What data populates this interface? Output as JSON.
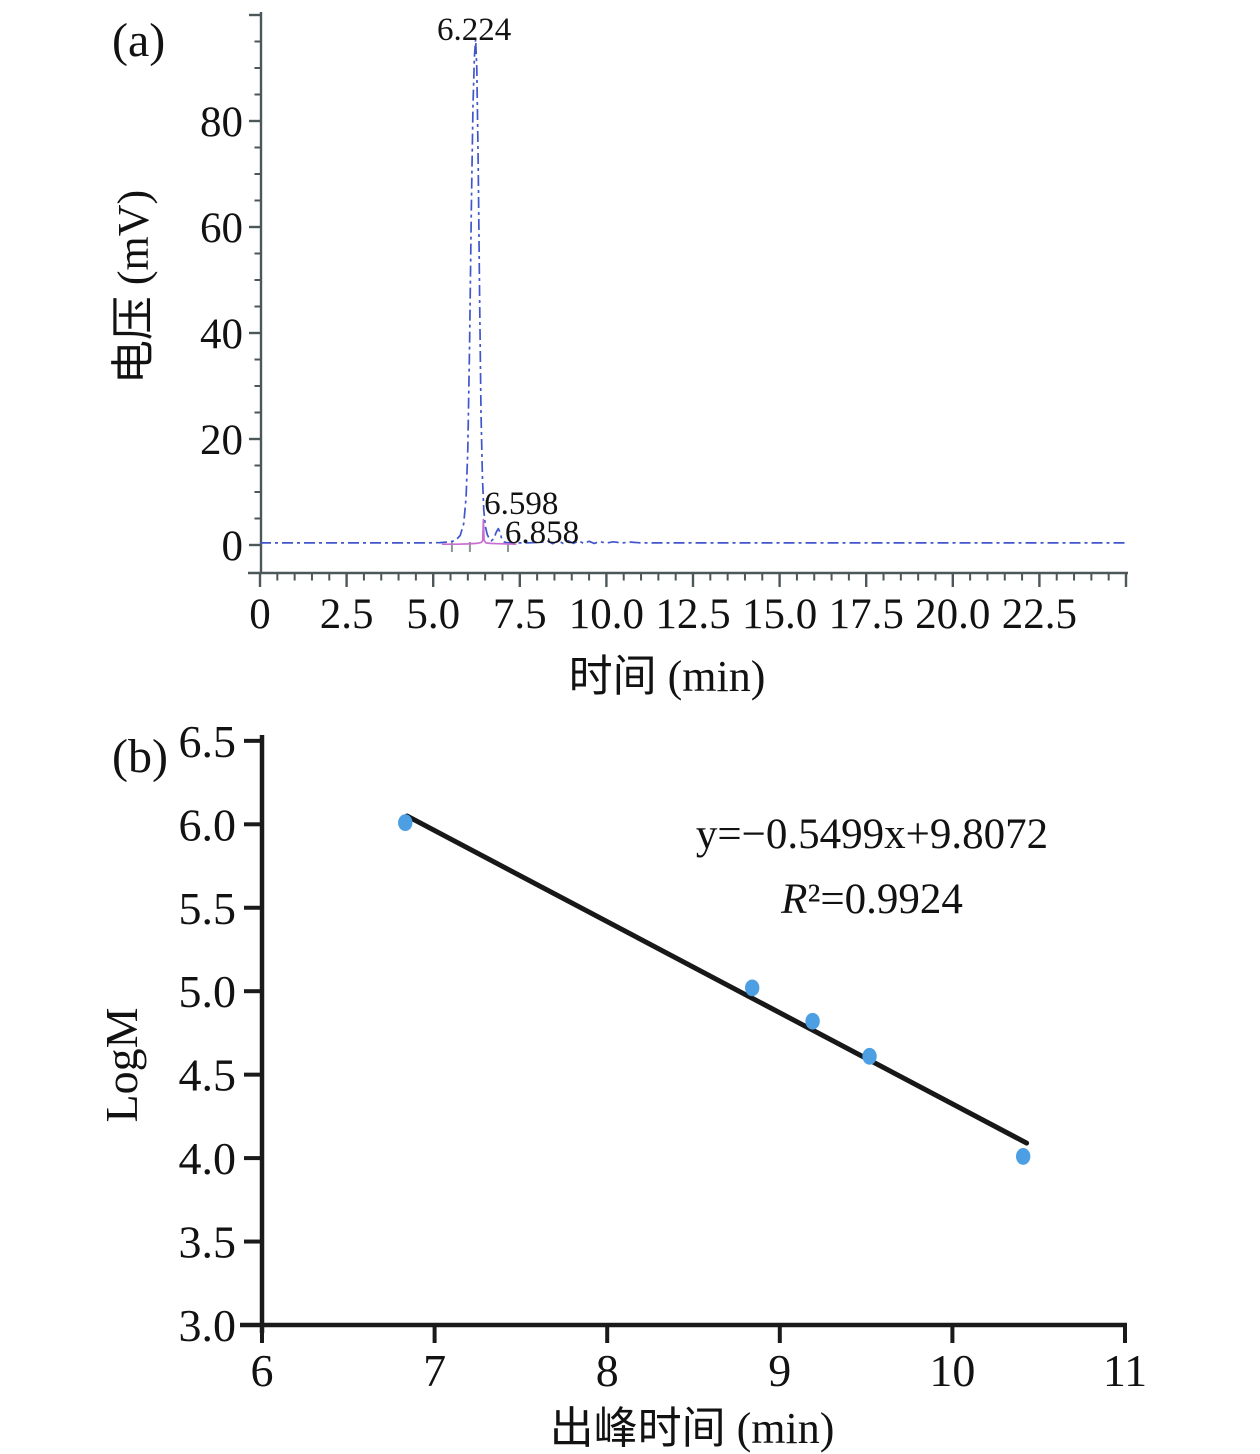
{
  "page": {
    "background": "#ffffff",
    "text_color": "#121212"
  },
  "chart_data": [
    {
      "id": "a",
      "type": "line",
      "panel_label": "(a)",
      "title": "",
      "xlabel": "时间 (min)",
      "ylabel": "电压 (mV)",
      "xlim": [
        0,
        25.1
      ],
      "ylim": [
        -5.3,
        100.6
      ],
      "grid": false,
      "legend": null,
      "axis_color": "#4b5759",
      "x_ticks": {
        "values": [
          0,
          2.5,
          5,
          7.5,
          10,
          12.5,
          15,
          17.5,
          20,
          22.5
        ],
        "labels": [
          "0",
          "2.5",
          "5.0",
          "7.5",
          "10.0",
          "12.5",
          "15.0",
          "17.5",
          "20.0",
          "22.5"
        ]
      },
      "x_minor_step": 0.5,
      "y_ticks": {
        "values": [
          0,
          20,
          40,
          60,
          80
        ],
        "labels": [
          "0",
          "20",
          "40",
          "60",
          "80"
        ]
      },
      "y_minor_step": 5,
      "series": [
        {
          "name": "detector-trace-main",
          "color": "#4156cd",
          "dash": "11 4 3 4",
          "width": 1.7,
          "points": [
            [
              0,
              0.4
            ],
            [
              0.6,
              0.4
            ],
            [
              1.2,
              0.4
            ],
            [
              1.8,
              0.4
            ],
            [
              2.4,
              0.4
            ],
            [
              3.0,
              0.4
            ],
            [
              3.6,
              0.4
            ],
            [
              4.2,
              0.4
            ],
            [
              4.8,
              0.4
            ],
            [
              5.2,
              0.45
            ],
            [
              5.5,
              0.6
            ],
            [
              5.65,
              0.9
            ],
            [
              5.78,
              1.8
            ],
            [
              5.88,
              4
            ],
            [
              5.95,
              9
            ],
            [
              6.0,
              18
            ],
            [
              6.05,
              38
            ],
            [
              6.1,
              63
            ],
            [
              6.15,
              83
            ],
            [
              6.19,
              92
            ],
            [
              6.224,
              95.5
            ],
            [
              6.26,
              90
            ],
            [
              6.3,
              72
            ],
            [
              6.34,
              47
            ],
            [
              6.38,
              25
            ],
            [
              6.42,
              13
            ],
            [
              6.46,
              6.5
            ],
            [
              6.51,
              3.4
            ],
            [
              6.56,
              2
            ],
            [
              6.62,
              1.2
            ],
            [
              6.68,
              0.8
            ],
            [
              6.75,
              1.2
            ],
            [
              6.82,
              2.4
            ],
            [
              6.88,
              3.1
            ],
            [
              6.93,
              2.4
            ],
            [
              6.98,
              1.1
            ],
            [
              7.04,
              0.6
            ],
            [
              7.12,
              0.45
            ],
            [
              7.3,
              0.4
            ],
            [
              7.7,
              0.4
            ],
            [
              8.1,
              0.5
            ],
            [
              8.3,
              0.75
            ],
            [
              8.45,
              0.25
            ],
            [
              8.6,
              0.8
            ],
            [
              8.75,
              0.3
            ],
            [
              8.9,
              0.8
            ],
            [
              9.05,
              0.3
            ],
            [
              9.2,
              0.75
            ],
            [
              9.35,
              0.3
            ],
            [
              9.5,
              0.7
            ],
            [
              9.65,
              0.3
            ],
            [
              9.8,
              0.65
            ],
            [
              10.0,
              0.35
            ],
            [
              10.2,
              0.6
            ],
            [
              10.45,
              0.4
            ],
            [
              10.7,
              0.55
            ],
            [
              11.0,
              0.4
            ],
            [
              11.6,
              0.4
            ],
            [
              12.4,
              0.4
            ],
            [
              13.2,
              0.4
            ],
            [
              14.0,
              0.4
            ],
            [
              15.0,
              0.4
            ],
            [
              16.0,
              0.4
            ],
            [
              17.0,
              0.4
            ],
            [
              18.0,
              0.4
            ],
            [
              19.0,
              0.4
            ],
            [
              20.0,
              0.4
            ],
            [
              21.0,
              0.4
            ],
            [
              22.0,
              0.4
            ],
            [
              23.0,
              0.4
            ],
            [
              24.0,
              0.4
            ],
            [
              25.0,
              0.4
            ]
          ]
        },
        {
          "name": "detector-trace-secondary",
          "color": "#c76fd0",
          "dash": null,
          "width": 1.7,
          "points": [
            [
              5.25,
              0.15
            ],
            [
              5.7,
              0.15
            ],
            [
              6.0,
              0.2
            ],
            [
              6.25,
              0.3
            ],
            [
              6.38,
              0.45
            ],
            [
              6.43,
              0.8
            ],
            [
              6.45,
              4.8
            ],
            [
              6.47,
              0.9
            ],
            [
              6.52,
              0.4
            ],
            [
              6.65,
              0.3
            ],
            [
              6.85,
              0.25
            ],
            [
              7.1,
              0.2
            ],
            [
              7.4,
              0.15
            ]
          ]
        }
      ],
      "integration_markers": {
        "color": "#8a9693",
        "x_values": [
          5.54,
          6.06,
          7.16
        ]
      },
      "peak_labels": [
        {
          "text": "6.224",
          "x": 6.18,
          "y_mv": 95.3,
          "anchor": "middle"
        },
        {
          "text": "6.598",
          "x": 6.47,
          "y_mv": 5.85,
          "anchor": "start"
        },
        {
          "text": "6.858",
          "x": 7.07,
          "y_mv": 0.38,
          "anchor": "start"
        }
      ]
    },
    {
      "id": "b",
      "type": "scatter",
      "panel_label": "(b)",
      "title": "",
      "xlabel": "出峰时间 (min)",
      "ylabel": "LogM",
      "xlim": [
        6,
        11
      ],
      "ylim": [
        3.0,
        6.5
      ],
      "grid": false,
      "legend": null,
      "axis_color": "#1a1a1a",
      "x_ticks": {
        "values": [
          6,
          7,
          8,
          9,
          10,
          11
        ],
        "labels": [
          "6",
          "7",
          "8",
          "9",
          "10",
          "11"
        ]
      },
      "y_ticks": {
        "values": [
          3.0,
          3.5,
          4.0,
          4.5,
          5.0,
          5.5,
          6.0,
          6.5
        ],
        "labels": [
          "3.0",
          "3.5",
          "4.0",
          "4.5",
          "5.0",
          "5.5",
          "6.0",
          "6.5"
        ]
      },
      "points": {
        "name": "calibration-standards",
        "color": "#4d9fe3",
        "xy": [
          [
            6.83,
            6.01
          ],
          [
            8.84,
            5.02
          ],
          [
            9.19,
            4.82
          ],
          [
            9.52,
            4.61
          ],
          [
            10.41,
            4.01
          ]
        ]
      },
      "fit_line": {
        "color": "#181818",
        "width": 5,
        "x1": 6.84,
        "y1": 6.05,
        "x2": 10.43,
        "y2": 4.09
      },
      "annotations": {
        "equation": "y=−0.5499x+9.8072",
        "r_squared": "R²=0.9924"
      }
    }
  ]
}
